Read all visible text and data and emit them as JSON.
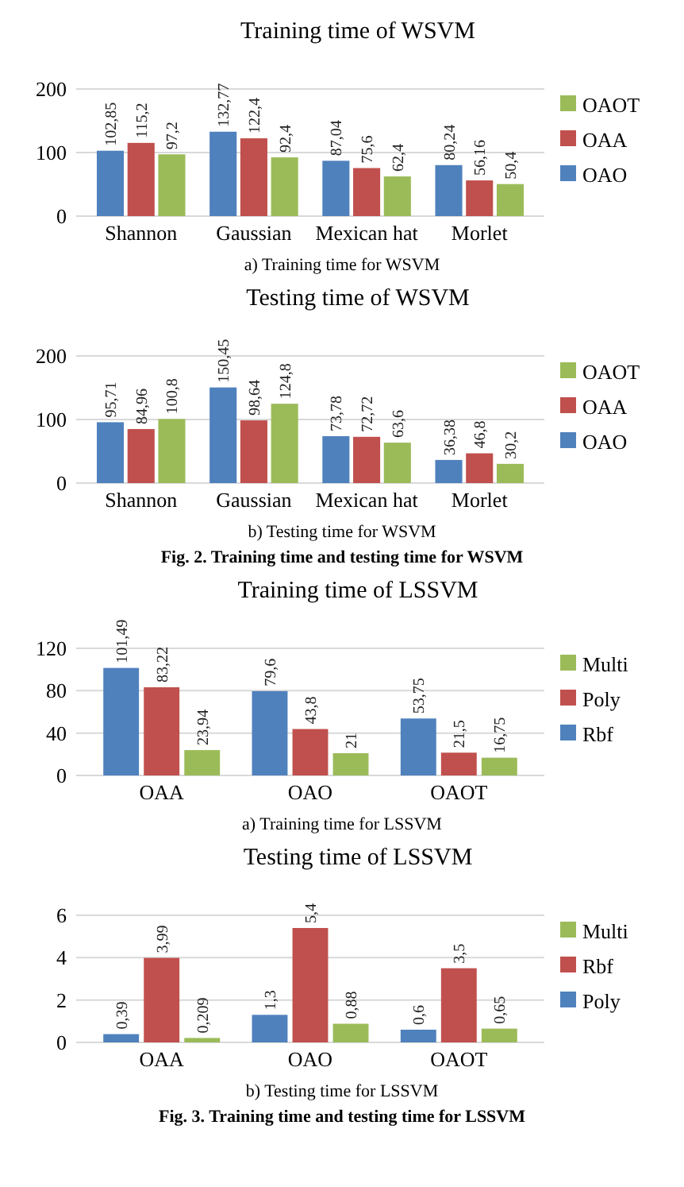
{
  "chart_data": [
    {
      "type": "bar",
      "title": "Training time of WSVM",
      "categories": [
        "Shannon",
        "Gaussian",
        "Mexican hat",
        "Morlet"
      ],
      "series": [
        {
          "name": "OAO",
          "color": "#4f81bd",
          "values": [
            102.85,
            132.77,
            87.04,
            80.24
          ],
          "value_labels": [
            "102,85",
            "132,77",
            "87,04",
            "80,24"
          ]
        },
        {
          "name": "OAA",
          "color": "#c0504d",
          "values": [
            115.2,
            122.4,
            75.6,
            56.16
          ],
          "value_labels": [
            "115,2",
            "122,4",
            "75,6",
            "56,16"
          ]
        },
        {
          "name": "OAOT",
          "color": "#9bbb59",
          "values": [
            97.2,
            92.4,
            62.4,
            50.4
          ],
          "value_labels": [
            "97,2",
            "92,4",
            "62,4",
            "50,4"
          ]
        }
      ],
      "ylim": [
        0,
        200
      ],
      "yticks": [
        0,
        100,
        200
      ],
      "grid": "y",
      "legend": "right",
      "annotations": [
        "a) Training time for WSVM"
      ]
    },
    {
      "type": "bar",
      "title": "Testing time of WSVM",
      "categories": [
        "Shannon",
        "Gaussian",
        "Mexican hat",
        "Morlet"
      ],
      "series": [
        {
          "name": "OAO",
          "color": "#4f81bd",
          "values": [
            95.71,
            150.45,
            73.78,
            36.38
          ],
          "value_labels": [
            "95,71",
            "150,45",
            "73,78",
            "36,38"
          ]
        },
        {
          "name": "OAA",
          "color": "#c0504d",
          "values": [
            84.96,
            98.64,
            72.72,
            46.8
          ],
          "value_labels": [
            "84,96",
            "98,64",
            "72,72",
            "46,8"
          ]
        },
        {
          "name": "OAOT",
          "color": "#9bbb59",
          "values": [
            100.8,
            124.8,
            63.6,
            30.2
          ],
          "value_labels": [
            "100,8",
            "124,8",
            "63,6",
            "30,2"
          ]
        }
      ],
      "ylim": [
        0,
        200
      ],
      "yticks": [
        0,
        100,
        200
      ],
      "grid": "y",
      "legend": "right",
      "annotations": [
        "b) Testing time for WSVM",
        "Fig. 2. Training time and testing time for WSVM"
      ]
    },
    {
      "type": "bar",
      "title": "Training time of LSSVM",
      "categories": [
        "OAA",
        "OAO",
        "OAOT"
      ],
      "series": [
        {
          "name": "Rbf",
          "color": "#4f81bd",
          "values": [
            101.49,
            79.6,
            53.75
          ],
          "value_labels": [
            "101,49",
            "79,6",
            "53,75"
          ]
        },
        {
          "name": "Poly",
          "color": "#c0504d",
          "values": [
            83.22,
            43.8,
            21.5
          ],
          "value_labels": [
            "83,22",
            "43,8",
            "21,5"
          ]
        },
        {
          "name": "Multi",
          "color": "#9bbb59",
          "values": [
            23.94,
            21,
            16.75
          ],
          "value_labels": [
            "23,94",
            "21",
            "16,75"
          ]
        }
      ],
      "ylim": [
        0,
        120
      ],
      "yticks": [
        0,
        40,
        80,
        120
      ],
      "grid": "y",
      "legend": "right",
      "annotations": [
        "a) Training time for LSSVM"
      ]
    },
    {
      "type": "bar",
      "title": "Testing time of LSSVM",
      "categories": [
        "OAA",
        "OAO",
        "OAOT"
      ],
      "series": [
        {
          "name": "Poly",
          "color": "#4f81bd",
          "values": [
            0.39,
            1.3,
            0.6
          ],
          "value_labels": [
            "0,39",
            "1,3",
            "0,6"
          ]
        },
        {
          "name": "Rbf",
          "color": "#c0504d",
          "values": [
            3.99,
            5.4,
            3.5
          ],
          "value_labels": [
            "3,99",
            "5,4",
            "3,5"
          ]
        },
        {
          "name": "Multi",
          "color": "#9bbb59",
          "values": [
            0.209,
            0.88,
            0.65
          ],
          "value_labels": [
            "0,209",
            "0,88",
            "0,65"
          ]
        }
      ],
      "ylim": [
        0,
        6
      ],
      "yticks": [
        0,
        2,
        4,
        6
      ],
      "grid": "y",
      "legend": "right",
      "annotations": [
        "b) Testing time for LSSVM",
        "Fig. 3. Training time and testing time for LSSVM"
      ]
    }
  ]
}
